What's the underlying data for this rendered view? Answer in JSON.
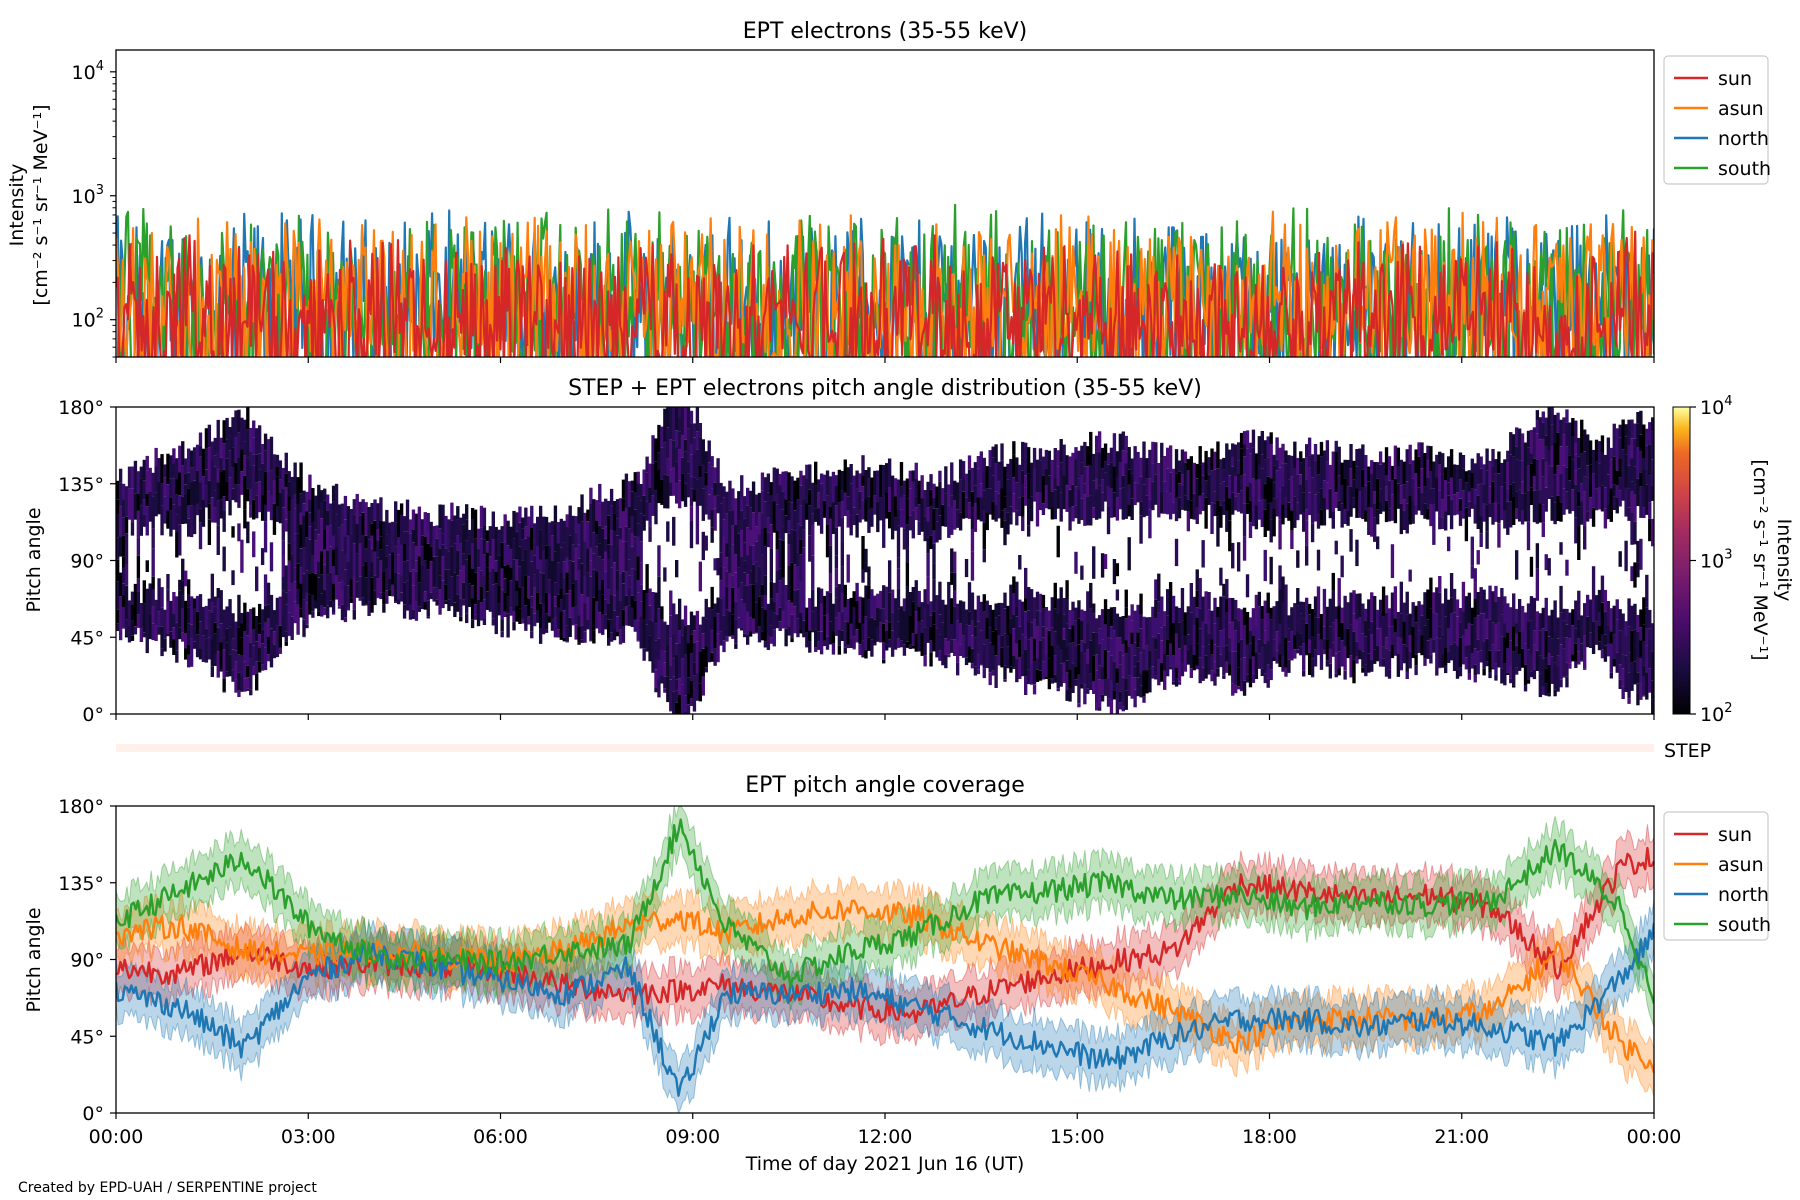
{
  "chart_data": [
    {
      "type": "line",
      "title": "EPT electrons (35-55 keV)",
      "ylabel": "Intensity",
      "yunit": "[cm⁻² s⁻¹ sr⁻¹ MeV⁻¹]",
      "yscale": "log",
      "ylim": [
        50,
        15000
      ],
      "yticks": [
        {
          "value": 100,
          "base": "10",
          "exp": "2"
        },
        {
          "value": 1000,
          "base": "10",
          "exp": "3"
        },
        {
          "value": 10000,
          "base": "10",
          "exp": "4"
        }
      ],
      "xlim_hours": [
        0,
        24
      ],
      "legend": {
        "placement": "outside-right-top",
        "entries": [
          "sun",
          "asun",
          "north",
          "south"
        ]
      },
      "series": [
        {
          "name": "sun",
          "color": "#d62728",
          "typical_range": [
            50,
            450
          ]
        },
        {
          "name": "asun",
          "color": "#ff7f0e",
          "typical_range": [
            50,
            700
          ]
        },
        {
          "name": "north",
          "color": "#1f77b4",
          "typical_range": [
            50,
            720
          ]
        },
        {
          "name": "south",
          "color": "#2ca02c",
          "typical_range": [
            50,
            760
          ]
        }
      ]
    },
    {
      "type": "heatmap",
      "title": "STEP + EPT electrons pitch angle distribution (35-55 keV)",
      "ylabel": "Pitch angle",
      "yticks": [
        "0°",
        "45°",
        "90°",
        "135°",
        "180°"
      ],
      "ylim": [
        0,
        180
      ],
      "xlim_hours": [
        0,
        24
      ],
      "colorbar": {
        "label": "Intensity",
        "unit": "[cm⁻² s⁻¹ sr⁻¹ MeV⁻¹]",
        "scale": "log",
        "range": [
          100,
          10000
        ],
        "ticks": [
          {
            "base": "10",
            "exp": "2"
          },
          {
            "base": "10",
            "exp": "3"
          },
          {
            "base": "10",
            "exp": "4"
          }
        ]
      },
      "step_label": "STEP"
    },
    {
      "type": "line",
      "title": "EPT pitch angle coverage",
      "ylabel": "Pitch angle",
      "yticks": [
        "0°",
        "45°",
        "90°",
        "135°",
        "180°"
      ],
      "ylim": [
        0,
        180
      ],
      "xlabel": "Time of day 2021 Jun 16 (UT)",
      "xticks": [
        "00:00",
        "03:00",
        "06:00",
        "09:00",
        "12:00",
        "15:00",
        "18:00",
        "21:00",
        "00:00"
      ],
      "legend": {
        "placement": "outside-right-top",
        "entries": [
          "sun",
          "asun",
          "north",
          "south"
        ]
      },
      "x_hours": [
        0,
        1,
        2,
        3,
        4,
        5,
        6,
        7,
        8,
        8.8,
        9.5,
        10.5,
        11.5,
        12.5,
        13.5,
        14.5,
        15.5,
        16.5,
        17.5,
        18.5,
        19.5,
        20.5,
        21.5,
        22.5,
        23.5,
        24
      ],
      "series": [
        {
          "name": "sun",
          "color": "#d62728",
          "values": [
            85,
            82,
            95,
            85,
            88,
            86,
            84,
            75,
            70,
            72,
            75,
            70,
            62,
            58,
            70,
            80,
            88,
            95,
            135,
            130,
            125,
            128,
            120,
            85,
            145,
            150
          ]
        },
        {
          "name": "asun",
          "color": "#ff7f0e",
          "values": [
            105,
            110,
            95,
            92,
            95,
            92,
            88,
            95,
            110,
            115,
            105,
            115,
            120,
            115,
            100,
            88,
            75,
            60,
            42,
            55,
            55,
            55,
            60,
            95,
            40,
            30
          ]
        },
        {
          "name": "north",
          "color": "#1f77b4",
          "values": [
            72,
            62,
            38,
            80,
            95,
            85,
            78,
            70,
            85,
            10,
            70,
            70,
            72,
            62,
            50,
            40,
            30,
            45,
            55,
            55,
            50,
            55,
            50,
            40,
            80,
            105
          ]
        },
        {
          "name": "south",
          "color": "#2ca02c",
          "values": [
            112,
            130,
            150,
            110,
            92,
            90,
            88,
            95,
            98,
            170,
            110,
            80,
            95,
            105,
            125,
            130,
            135,
            125,
            128,
            120,
            125,
            122,
            125,
            155,
            120,
            65
          ]
        }
      ]
    }
  ],
  "credit": "Created by EPD-UAH / SERPENTINE project"
}
